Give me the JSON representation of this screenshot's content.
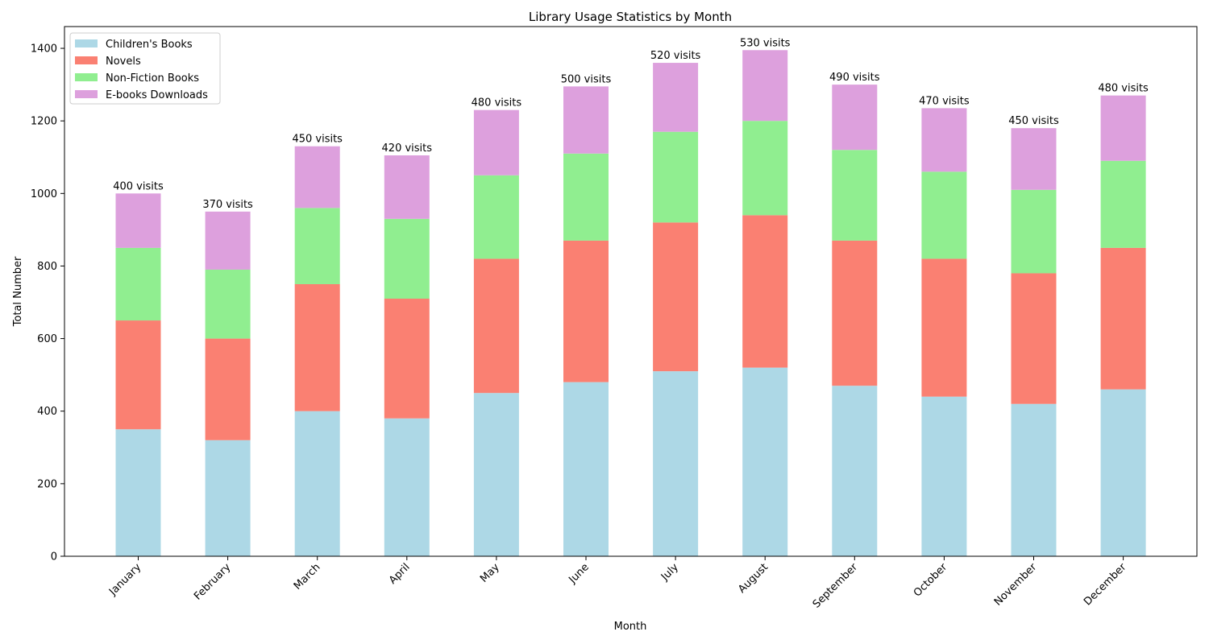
{
  "chart_data": {
    "type": "bar",
    "stacked": true,
    "title": "Library Usage Statistics by Month",
    "xlabel": "Month",
    "ylabel": "Total Number",
    "ylim": [
      0,
      1460
    ],
    "yticks": [
      0,
      200,
      400,
      600,
      800,
      1000,
      1200,
      1400
    ],
    "grid": false,
    "legend_position": "top-left",
    "categories": [
      "January",
      "February",
      "March",
      "April",
      "May",
      "June",
      "July",
      "August",
      "September",
      "October",
      "November",
      "December"
    ],
    "series": [
      {
        "name": "Children's Books",
        "color": "#add8e6",
        "values": [
          350,
          320,
          400,
          380,
          450,
          480,
          510,
          520,
          470,
          440,
          420,
          460
        ]
      },
      {
        "name": "Novels",
        "color": "#fa8072",
        "values": [
          300,
          280,
          350,
          330,
          370,
          390,
          410,
          420,
          400,
          380,
          360,
          390
        ]
      },
      {
        "name": "Non-Fiction Books",
        "color": "#90ee90",
        "values": [
          200,
          190,
          210,
          220,
          230,
          240,
          250,
          260,
          250,
          240,
          230,
          240
        ]
      },
      {
        "name": "E-books Downloads",
        "color": "#dda0dd",
        "values": [
          150,
          160,
          170,
          175,
          180,
          185,
          190,
          195,
          180,
          175,
          170,
          180
        ]
      }
    ],
    "annotations": [
      "400 visits",
      "370 visits",
      "450 visits",
      "420 visits",
      "480 visits",
      "500 visits",
      "520 visits",
      "530 visits",
      "490 visits",
      "470 visits",
      "450 visits",
      "480 visits"
    ]
  }
}
